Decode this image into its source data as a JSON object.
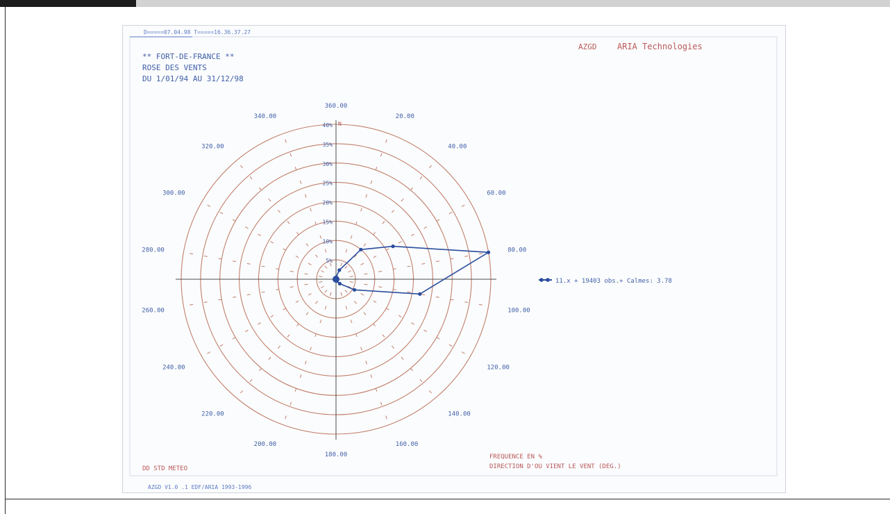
{
  "header_top_left": "D=====07.04.98  T=====16.36.37.27",
  "title_lines": [
    "** FORT-DE-FRANCE **",
    "ROSE DES VENTS",
    "DU 1/01/94 AU 31/12/98"
  ],
  "brand_left": "AZGD",
  "brand_right": "ARIA Technologies",
  "footer_left": "DD STD METEO",
  "footer_right_1": "FREQUENCE EN %",
  "footer_right_2": "DIRECTION D'OU VIENT LE VENT (DEG.)",
  "bottom_strip": "AZGD V1.0  .1  EDF/ARIA 1993-1996",
  "legend_text": "11.x + 19403 obs.+ Calmes:   3.78",
  "colors": {
    "grid": "#c17f6c",
    "series": "#2a4d9e",
    "text_blue": "#3f5fa8",
    "text_red": "#b9585a",
    "header": "#5a79c4",
    "axis": "#4b4b4b"
  },
  "chart_data": {
    "type": "radar",
    "title": "ROSE DES VENTS",
    "angle_labels": [
      "360.00",
      "20.00",
      "40.00",
      "60.00",
      "80.00",
      "100.00",
      "120.00",
      "140.00",
      "160.00",
      "180.00",
      "200.00",
      "220.00",
      "240.00",
      "260.00",
      "280.00",
      "300.00",
      "320.00",
      "340.00"
    ],
    "radial_ticks": [
      "5%",
      "10%",
      "15%",
      "20%",
      "25%",
      "30%",
      "35%",
      "40%"
    ],
    "radial_max": 40,
    "north_marker": "N",
    "series": [
      {
        "name": "11.x + 19403 obs.+ Calmes:   3.78",
        "directions": [
          360,
          20,
          40,
          60,
          80,
          100,
          120,
          140,
          160,
          180,
          200,
          220,
          240,
          260,
          280,
          300,
          320,
          340
        ],
        "values": [
          0.5,
          2.5,
          10.0,
          17.0,
          40.0,
          22.0,
          5.5,
          1.5,
          0.5,
          0.3,
          0.2,
          0.2,
          0.2,
          0.3,
          0.3,
          0.3,
          0.3,
          0.4
        ]
      }
    ]
  }
}
